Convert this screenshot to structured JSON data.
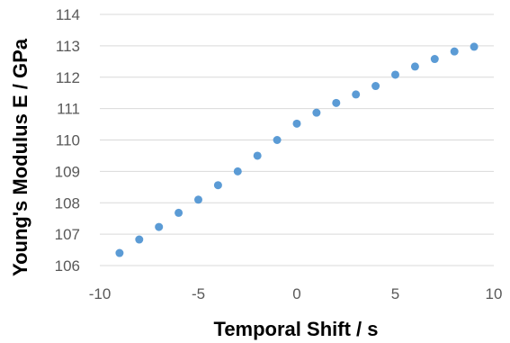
{
  "chart_data": {
    "type": "scatter",
    "title": "",
    "xlabel": "Temporal Shift / s",
    "ylabel": "Young's Modulus E / GPa",
    "xlim": [
      -10,
      10
    ],
    "ylim": [
      106,
      114
    ],
    "xticks": [
      -10,
      -5,
      0,
      5,
      10
    ],
    "yticks": [
      106,
      107,
      108,
      109,
      110,
      111,
      112,
      113,
      114
    ],
    "grid": "horizontal",
    "marker_color": "#5B9BD5",
    "gridline_color": "#D9D9D9",
    "series": [
      {
        "x": [
          -9,
          -8,
          -7,
          -6,
          -5,
          -4,
          -3,
          -2,
          -1,
          0,
          1,
          2,
          3,
          4,
          5,
          6,
          7,
          8,
          9
        ],
        "y": [
          106.4,
          106.83,
          107.23,
          107.68,
          108.1,
          108.56,
          109.0,
          109.5,
          110.0,
          110.52,
          110.87,
          111.18,
          111.45,
          111.72,
          112.08,
          112.34,
          112.58,
          112.82,
          112.97
        ]
      }
    ]
  }
}
